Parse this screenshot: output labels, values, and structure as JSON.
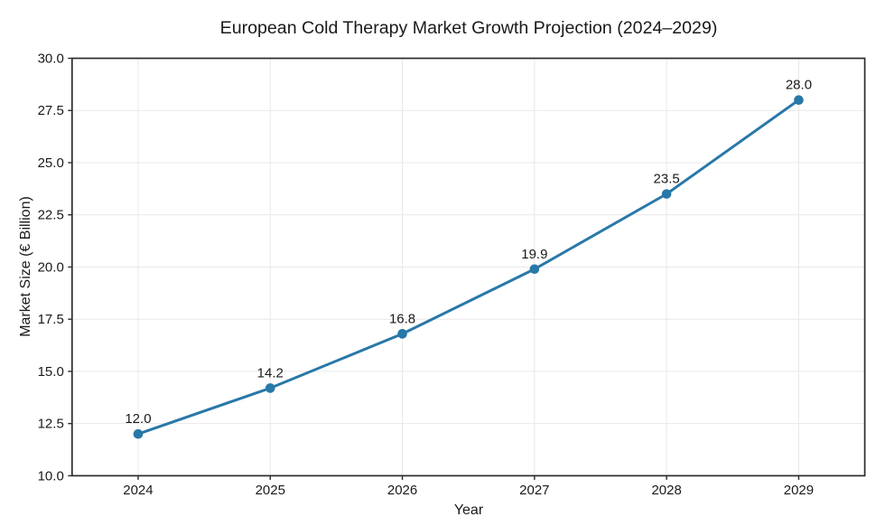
{
  "chart_data": {
    "type": "line",
    "title": "European Cold Therapy Market Growth Projection (2024–2029)",
    "xlabel": "Year",
    "ylabel": "Market Size (€ Billion)",
    "x": [
      2024,
      2025,
      2026,
      2027,
      2028,
      2029
    ],
    "series": [
      {
        "name": "Market Size",
        "values": [
          12.0,
          14.2,
          16.8,
          19.9,
          23.5,
          28.0
        ],
        "point_labels": [
          "12.0",
          "14.2",
          "16.8",
          "19.9",
          "23.5",
          "28.0"
        ]
      }
    ],
    "xtick_labels": [
      "2024",
      "2025",
      "2026",
      "2027",
      "2028",
      "2029"
    ],
    "yticks": [
      10.0,
      12.5,
      15.0,
      17.5,
      20.0,
      22.5,
      25.0,
      27.5,
      30.0
    ],
    "ytick_labels": [
      "10.0",
      "12.5",
      "15.0",
      "17.5",
      "20.0",
      "22.5",
      "25.0",
      "27.5",
      "30.0"
    ],
    "xlim": [
      2023.5,
      2029.5
    ],
    "ylim": [
      10.0,
      30.0
    ],
    "grid": true,
    "legend": false,
    "marker": "circle",
    "colors": {
      "line": "#2878a8",
      "marker_fill": "#2878a8",
      "grid": "#e9e9e9",
      "spine": "#2b2b2b",
      "tick": "#2b2b2b",
      "text": "#1a1a1a",
      "background": "#ffffff"
    }
  }
}
